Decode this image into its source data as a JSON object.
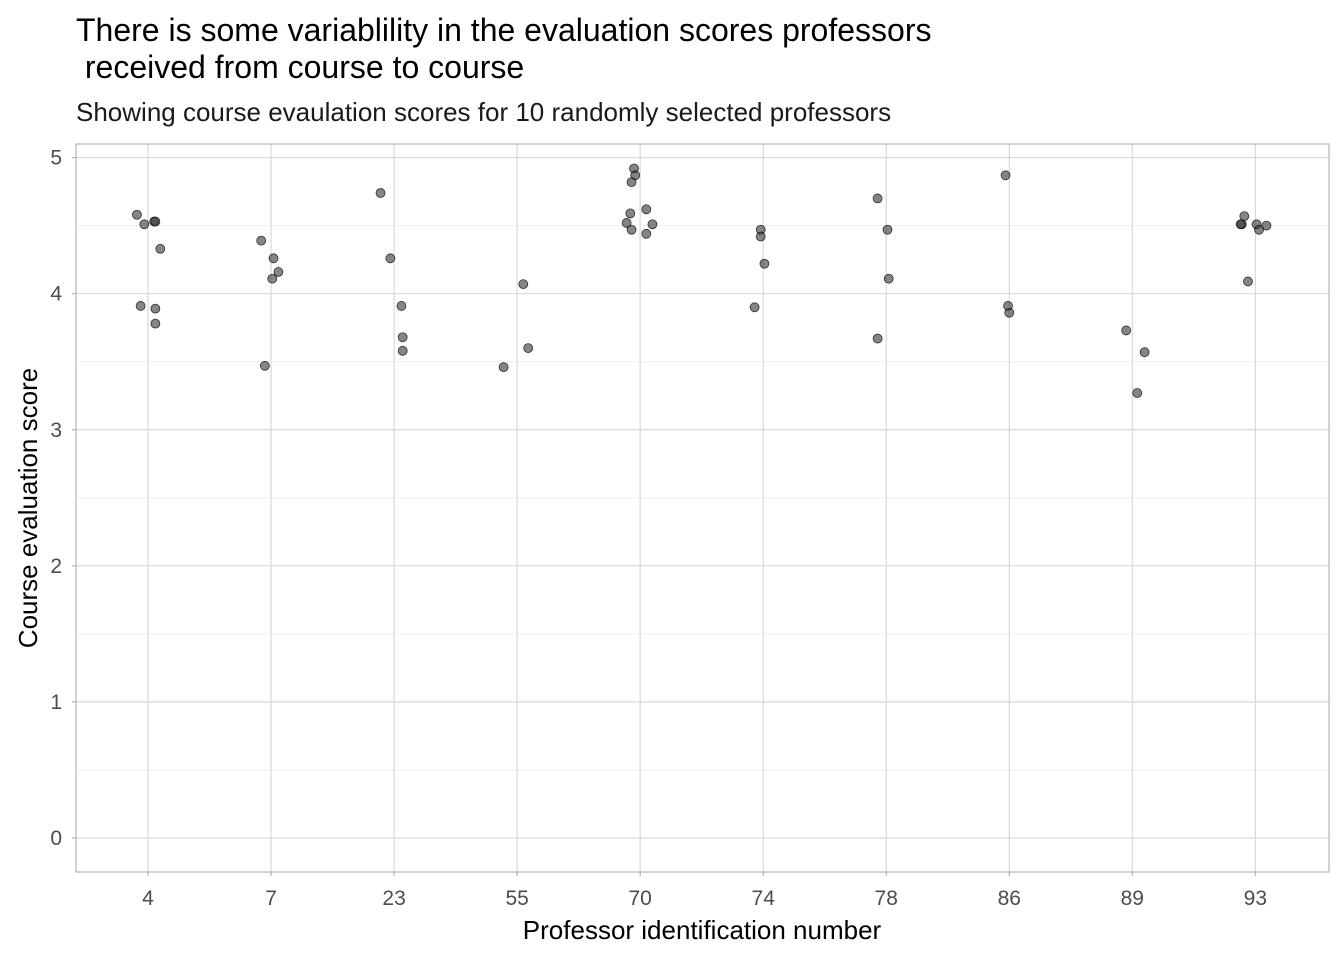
{
  "chart_data": {
    "type": "scatter",
    "title_lines": [
      "There is some variablility in the evaluation scores professors",
      " received from course to course"
    ],
    "subtitle": "Showing course evaulation scores for 10 randomly selected professors",
    "xlabel": "Professor identification number",
    "ylabel": "Course evaluation score",
    "categories": [
      "4",
      "7",
      "23",
      "55",
      "70",
      "74",
      "78",
      "86",
      "89",
      "93"
    ],
    "ylim": [
      -0.25,
      5.1
    ],
    "y_ticks": [
      0,
      1,
      2,
      3,
      4,
      5
    ],
    "grid": true,
    "point_color": "#333333",
    "point_alpha": 0.6,
    "points": [
      {
        "category": "4",
        "jitter": -0.09,
        "y": 4.58
      },
      {
        "category": "4",
        "jitter": -0.03,
        "y": 4.51
      },
      {
        "category": "4",
        "jitter": 0.05,
        "y": 4.53
      },
      {
        "category": "4",
        "jitter": 0.06,
        "y": 4.53
      },
      {
        "category": "4",
        "jitter": 0.1,
        "y": 4.33
      },
      {
        "category": "4",
        "jitter": -0.06,
        "y": 3.91
      },
      {
        "category": "4",
        "jitter": 0.06,
        "y": 3.89
      },
      {
        "category": "4",
        "jitter": 0.06,
        "y": 3.78
      },
      {
        "category": "7",
        "jitter": -0.08,
        "y": 4.39
      },
      {
        "category": "7",
        "jitter": 0.02,
        "y": 4.26
      },
      {
        "category": "7",
        "jitter": 0.06,
        "y": 4.16
      },
      {
        "category": "7",
        "jitter": 0.01,
        "y": 4.11
      },
      {
        "category": "7",
        "jitter": -0.05,
        "y": 3.47
      },
      {
        "category": "23",
        "jitter": -0.11,
        "y": 4.74
      },
      {
        "category": "23",
        "jitter": -0.03,
        "y": 4.26
      },
      {
        "category": "23",
        "jitter": 0.06,
        "y": 3.91
      },
      {
        "category": "23",
        "jitter": 0.07,
        "y": 3.68
      },
      {
        "category": "23",
        "jitter": 0.07,
        "y": 3.58
      },
      {
        "category": "55",
        "jitter": 0.05,
        "y": 4.07
      },
      {
        "category": "55",
        "jitter": 0.09,
        "y": 3.6
      },
      {
        "category": "55",
        "jitter": -0.11,
        "y": 3.46
      },
      {
        "category": "70",
        "jitter": -0.05,
        "y": 4.92
      },
      {
        "category": "70",
        "jitter": -0.04,
        "y": 4.87
      },
      {
        "category": "70",
        "jitter": -0.07,
        "y": 4.82
      },
      {
        "category": "70",
        "jitter": 0.05,
        "y": 4.62
      },
      {
        "category": "70",
        "jitter": -0.08,
        "y": 4.59
      },
      {
        "category": "70",
        "jitter": -0.11,
        "y": 4.52
      },
      {
        "category": "70",
        "jitter": 0.1,
        "y": 4.51
      },
      {
        "category": "70",
        "jitter": -0.07,
        "y": 4.47
      },
      {
        "category": "70",
        "jitter": 0.05,
        "y": 4.44
      },
      {
        "category": "74",
        "jitter": -0.02,
        "y": 4.47
      },
      {
        "category": "74",
        "jitter": -0.02,
        "y": 4.42
      },
      {
        "category": "74",
        "jitter": 0.01,
        "y": 4.22
      },
      {
        "category": "74",
        "jitter": -0.07,
        "y": 3.9
      },
      {
        "category": "78",
        "jitter": -0.07,
        "y": 4.7
      },
      {
        "category": "78",
        "jitter": 0.01,
        "y": 4.47
      },
      {
        "category": "78",
        "jitter": 0.02,
        "y": 4.11
      },
      {
        "category": "78",
        "jitter": -0.07,
        "y": 3.67
      },
      {
        "category": "86",
        "jitter": -0.03,
        "y": 4.87
      },
      {
        "category": "86",
        "jitter": -0.01,
        "y": 3.91
      },
      {
        "category": "86",
        "jitter": 0.0,
        "y": 3.86
      },
      {
        "category": "89",
        "jitter": -0.05,
        "y": 3.73
      },
      {
        "category": "89",
        "jitter": 0.1,
        "y": 3.57
      },
      {
        "category": "89",
        "jitter": 0.04,
        "y": 3.27
      },
      {
        "category": "93",
        "jitter": -0.09,
        "y": 4.57
      },
      {
        "category": "93",
        "jitter": -0.11,
        "y": 4.51
      },
      {
        "category": "93",
        "jitter": -0.12,
        "y": 4.51
      },
      {
        "category": "93",
        "jitter": 0.01,
        "y": 4.51
      },
      {
        "category": "93",
        "jitter": 0.03,
        "y": 4.47
      },
      {
        "category": "93",
        "jitter": 0.09,
        "y": 4.5
      },
      {
        "category": "93",
        "jitter": -0.06,
        "y": 4.09
      }
    ]
  }
}
